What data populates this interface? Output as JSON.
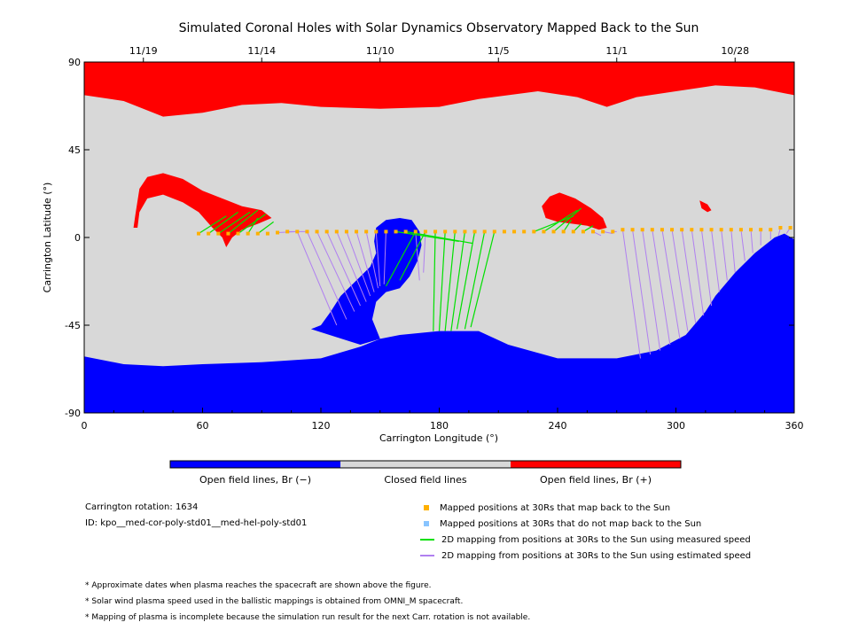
{
  "chart_data": {
    "type": "map",
    "title": "Simulated Coronal Holes with Solar Dynamics Observatory Mapped Back to the Sun",
    "xlabel": "Carrington Longitude (°)",
    "ylabel": "Carrington Latitude (°)",
    "xlim": [
      0,
      360
    ],
    "ylim": [
      -90,
      90
    ],
    "x_ticks": [
      0,
      60,
      120,
      180,
      240,
      300,
      360
    ],
    "y_ticks": [
      -90,
      -45,
      0,
      45,
      90
    ],
    "top_axis": {
      "label_dates": [
        "11/19",
        "11/14",
        "11/10",
        "11/5",
        "11/1",
        "10/28"
      ],
      "label_longitudes": [
        30,
        90,
        150,
        210,
        270,
        330
      ]
    },
    "colorbar": {
      "colors": [
        "#0000ff",
        "#d8d8d8",
        "#ff0000"
      ],
      "labels": [
        "Open field lines, Br (−)",
        "Closed field lines",
        "Open field lines, Br (+)"
      ]
    },
    "regions": {
      "north_positive_boundary": [
        [
          0,
          73
        ],
        [
          20,
          70
        ],
        [
          40,
          62
        ],
        [
          60,
          64
        ],
        [
          80,
          68
        ],
        [
          100,
          69
        ],
        [
          120,
          67
        ],
        [
          150,
          66
        ],
        [
          180,
          67
        ],
        [
          200,
          71
        ],
        [
          230,
          75
        ],
        [
          250,
          72
        ],
        [
          265,
          67
        ],
        [
          280,
          72
        ],
        [
          300,
          75
        ],
        [
          320,
          78
        ],
        [
          340,
          77
        ],
        [
          360,
          73
        ]
      ],
      "south_negative_boundary": [
        [
          0,
          -61
        ],
        [
          20,
          -65
        ],
        [
          40,
          -66
        ],
        [
          60,
          -65
        ],
        [
          90,
          -64
        ],
        [
          120,
          -62
        ],
        [
          140,
          -56
        ],
        [
          150,
          -52
        ],
        [
          160,
          -50
        ],
        [
          180,
          -48
        ],
        [
          190,
          -48
        ],
        [
          200,
          -48
        ],
        [
          215,
          -55
        ],
        [
          240,
          -62
        ],
        [
          270,
          -62
        ],
        [
          290,
          -58
        ],
        [
          305,
          -50
        ],
        [
          315,
          -38
        ],
        [
          320,
          -30
        ],
        [
          330,
          -18
        ],
        [
          340,
          -8
        ],
        [
          350,
          0
        ],
        [
          355,
          2
        ],
        [
          360,
          -1
        ]
      ],
      "south_negative_tongue": [
        [
          150,
          -52
        ],
        [
          146,
          -42
        ],
        [
          148,
          -33
        ],
        [
          153,
          -28
        ],
        [
          160,
          -26
        ],
        [
          165,
          -20
        ],
        [
          169,
          -12
        ],
        [
          171,
          -4
        ],
        [
          170,
          3
        ],
        [
          166,
          9
        ],
        [
          160,
          10
        ],
        [
          153,
          9
        ],
        [
          148,
          5
        ],
        [
          147,
          -2
        ],
        [
          148,
          -8
        ],
        [
          145,
          -15
        ],
        [
          138,
          -22
        ],
        [
          130,
          -30
        ],
        [
          125,
          -38
        ],
        [
          120,
          -45
        ],
        [
          115,
          -47
        ],
        [
          140,
          -55
        ]
      ],
      "north_positive_patch_left": [
        [
          25,
          5
        ],
        [
          26,
          12
        ],
        [
          28,
          25
        ],
        [
          32,
          31
        ],
        [
          40,
          33
        ],
        [
          50,
          30
        ],
        [
          60,
          24
        ],
        [
          70,
          20
        ],
        [
          80,
          16
        ],
        [
          90,
          14
        ],
        [
          95,
          10
        ],
        [
          88,
          7
        ],
        [
          80,
          4
        ],
        [
          75,
          0
        ],
        [
          72,
          -5
        ],
        [
          70,
          0
        ],
        [
          65,
          5
        ],
        [
          58,
          13
        ],
        [
          50,
          18
        ],
        [
          40,
          22
        ],
        [
          32,
          20
        ],
        [
          28,
          13
        ],
        [
          27,
          5
        ]
      ],
      "north_positive_patch_mid": [
        [
          232,
          16
        ],
        [
          236,
          21
        ],
        [
          241,
          23
        ],
        [
          249,
          20
        ],
        [
          257,
          15
        ],
        [
          263,
          10
        ],
        [
          265,
          5
        ],
        [
          261,
          4
        ],
        [
          255,
          6
        ],
        [
          248,
          7
        ],
        [
          240,
          8
        ],
        [
          234,
          10
        ]
      ],
      "north_positive_patch_small": [
        [
          312,
          19
        ],
        [
          316,
          17
        ],
        [
          318,
          14
        ],
        [
          316,
          13
        ],
        [
          313,
          15
        ]
      ]
    },
    "track_points": {
      "longitudes": [
        58,
        63,
        68,
        73,
        78,
        83,
        88,
        93,
        98,
        103,
        108,
        113,
        118,
        123,
        128,
        133,
        138,
        143,
        148,
        153,
        158,
        163,
        168,
        173,
        178,
        183,
        188,
        193,
        198,
        203,
        208,
        213,
        218,
        223,
        228,
        233,
        238,
        243,
        248,
        253,
        258,
        263,
        268,
        273,
        278,
        283,
        288,
        293,
        298,
        303,
        308,
        313,
        318,
        323,
        328,
        333,
        338,
        343,
        348,
        353,
        358
      ],
      "latitudes": [
        2,
        2,
        2,
        2,
        2,
        2,
        2,
        2,
        2.5,
        3,
        3,
        3,
        3,
        3,
        3,
        3,
        3,
        3,
        3,
        3,
        3,
        3,
        3,
        3,
        3,
        3,
        3,
        3,
        3,
        3,
        3,
        3,
        3,
        3,
        3,
        3,
        3,
        3,
        3,
        3,
        3,
        3,
        3,
        4,
        4,
        4,
        4,
        4,
        4,
        4,
        4,
        4,
        4,
        4,
        4,
        4,
        4,
        4,
        4,
        5,
        5
      ],
      "maps_back_color": "#ffb000",
      "not_map_back_color": "#88c4ff"
    },
    "mappings_measured": [
      [
        58,
        2,
        72,
        11
      ],
      [
        63,
        2,
        78,
        13
      ],
      [
        68,
        2,
        84,
        13
      ],
      [
        73,
        2,
        88,
        14
      ],
      [
        78,
        2,
        92,
        12
      ],
      [
        83,
        2,
        88,
        10
      ],
      [
        88,
        2,
        96,
        8
      ],
      [
        158,
        3,
        190,
        -2
      ],
      [
        163,
        3,
        197,
        -3
      ],
      [
        168,
        3,
        153,
        -25
      ],
      [
        173,
        3,
        160,
        -22
      ],
      [
        178,
        3,
        177,
        -48
      ],
      [
        183,
        3,
        180,
        -48
      ],
      [
        188,
        3,
        183,
        -48
      ],
      [
        193,
        3,
        186,
        -48
      ],
      [
        198,
        3,
        189,
        -47
      ],
      [
        203,
        3,
        193,
        -47
      ],
      [
        208,
        3,
        196,
        -46
      ],
      [
        228,
        3,
        248,
        11
      ],
      [
        233,
        3,
        250,
        14
      ],
      [
        238,
        3,
        252,
        15
      ],
      [
        243,
        3,
        247,
        9
      ],
      [
        248,
        3,
        252,
        7
      ],
      [
        253,
        3,
        258,
        6
      ]
    ],
    "mappings_estimated": [
      [
        98,
        2.5,
        108,
        3
      ],
      [
        103,
        3,
        113,
        3
      ],
      [
        108,
        3,
        128,
        -45
      ],
      [
        113,
        3,
        133,
        -42
      ],
      [
        118,
        3,
        137,
        -38
      ],
      [
        123,
        3,
        140,
        -35
      ],
      [
        128,
        3,
        143,
        -33
      ],
      [
        133,
        3,
        145,
        -30
      ],
      [
        138,
        3,
        147,
        -28
      ],
      [
        143,
        3,
        149,
        -26
      ],
      [
        148,
        3,
        150,
        -25
      ],
      [
        153,
        3,
        152,
        -24
      ],
      [
        168,
        3,
        170,
        -22
      ],
      [
        173,
        3,
        172,
        -18
      ],
      [
        258,
        3,
        262,
        1
      ],
      [
        263,
        3,
        268,
        2
      ],
      [
        268,
        3,
        270,
        3
      ],
      [
        273,
        4,
        282,
        -62
      ],
      [
        278,
        4,
        287,
        -60
      ],
      [
        283,
        4,
        292,
        -58
      ],
      [
        288,
        4,
        297,
        -55
      ],
      [
        293,
        4,
        302,
        -52
      ],
      [
        298,
        4,
        306,
        -48
      ],
      [
        303,
        4,
        310,
        -44
      ],
      [
        308,
        4,
        314,
        -40
      ],
      [
        313,
        4,
        318,
        -35
      ],
      [
        318,
        4,
        322,
        -28
      ],
      [
        323,
        4,
        326,
        -22
      ],
      [
        328,
        4,
        330,
        -18
      ],
      [
        333,
        4,
        335,
        -12
      ],
      [
        338,
        4,
        339,
        -8
      ],
      [
        343,
        4,
        343,
        -4
      ],
      [
        348,
        4,
        348,
        -1
      ],
      [
        353,
        5,
        352,
        1
      ],
      [
        358,
        5,
        356,
        2
      ]
    ],
    "measured_color": "#00e000",
    "estimated_color": "#b080f0"
  },
  "info": {
    "rotation": "Carrington rotation: 1634",
    "id": "ID: kpo__med-cor-poly-std01__med-hel-poly-std01"
  },
  "legend": [
    {
      "label": "Mapped positions at 30Rs that map back to the Sun",
      "color": "#ffb000",
      "icon": "square-marker-icon"
    },
    {
      "label": "Mapped positions at 30Rs that do not map back to the Sun",
      "color": "#88c4ff",
      "icon": "square-marker-icon"
    },
    {
      "label": "2D mapping from positions at 30Rs to the Sun using measured speed",
      "color": "#00e000",
      "icon": "line-swatch-icon"
    },
    {
      "label": "2D mapping from positions at 30Rs to the Sun using estimated speed",
      "color": "#b080f0",
      "icon": "line-swatch-icon"
    }
  ],
  "notes": [
    "* Approximate dates when plasma reaches the spacecraft are shown above the figure.",
    "* Solar wind plasma speed used in the ballistic mappings is obtained from OMNI_M spacecraft.",
    "* Mapping of plasma is incomplete because the simulation run result for the next Carr. rotation is not available."
  ]
}
